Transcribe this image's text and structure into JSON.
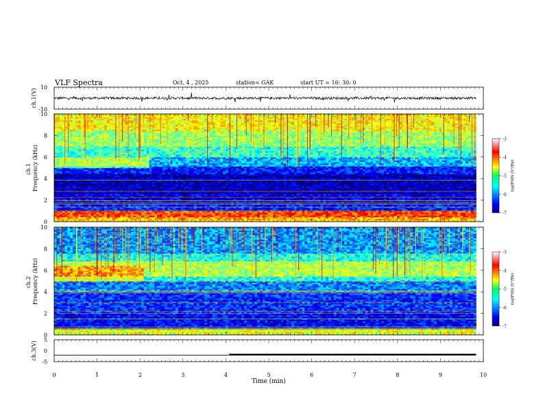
{
  "header": {
    "title": "VLF  Spectra",
    "date": "Oct. 4  , 2025",
    "station": "station= GAK",
    "start": "start  UT  =   16: 30: 0"
  },
  "chart_data": [
    {
      "type": "line",
      "name": "ch1-waveform",
      "ylabel": "ch.1(V)",
      "ylim": [
        -10,
        10
      ],
      "yticks": [
        "10",
        "-10"
      ],
      "xlim": [
        0,
        10
      ],
      "baseline": 0,
      "color": "#000000"
    },
    {
      "type": "heatmap",
      "name": "ch1-spectrogram",
      "ylabel": "ch.1\nFrequency  (kHz)",
      "ylabel_lines": [
        "ch.1",
        "Frequency  (kHz)"
      ],
      "ylim": [
        0,
        10
      ],
      "yticks": [
        "0",
        "2",
        "4",
        "6",
        "8",
        "10"
      ],
      "xlim": [
        0,
        10
      ],
      "data_xmax": 9.83,
      "bands": [
        {
          "f0": 0.0,
          "f1": 0.5,
          "level": -4.2
        },
        {
          "f0": 0.5,
          "f1": 1.0,
          "level": -3.8
        },
        {
          "f0": 1.0,
          "f1": 1.6,
          "level": -6.4
        },
        {
          "f0": 1.6,
          "f1": 2.6,
          "level": -6.6
        },
        {
          "f0": 2.6,
          "f1": 4.5,
          "level": -6.8
        },
        {
          "f0": 4.5,
          "f1": 5.2,
          "level": -6.4
        },
        {
          "f0": 5.2,
          "f1": 6.0,
          "level": -5.8
        },
        {
          "f0": 6.0,
          "f1": 7.0,
          "level": -5.3
        },
        {
          "f0": 7.0,
          "f1": 8.5,
          "level": -4.9
        },
        {
          "f0": 8.5,
          "f1": 10.0,
          "level": -4.5
        }
      ],
      "colorbar": {
        "label": "log(PSD) (V²/Hz)",
        "ticks": [
          "-3",
          "-4",
          "-5",
          "-6",
          "-7"
        ],
        "range": [
          -7,
          -3
        ]
      }
    },
    {
      "type": "heatmap",
      "name": "ch2-spectrogram",
      "ylabel": "ch.2\nFrequency  (kHz)",
      "ylabel_lines": [
        "ch.2",
        "Frequency  (kHz)"
      ],
      "ylim": [
        0,
        10
      ],
      "yticks": [
        "0",
        "2",
        "4",
        "6",
        "8",
        "10"
      ],
      "xlim": [
        0,
        10
      ],
      "data_xmax": 9.83,
      "bands": [
        {
          "f0": 0.0,
          "f1": 0.6,
          "level": -4.6
        },
        {
          "f0": 0.6,
          "f1": 2.0,
          "level": -6.5
        },
        {
          "f0": 2.0,
          "f1": 4.0,
          "level": -6.3
        },
        {
          "f0": 4.0,
          "f1": 5.0,
          "level": -6.0
        },
        {
          "f0": 5.0,
          "f1": 5.5,
          "level": -5.4
        },
        {
          "f0": 5.5,
          "f1": 6.8,
          "level": -4.8
        },
        {
          "f0": 6.8,
          "f1": 7.6,
          "level": -5.4
        },
        {
          "f0": 7.6,
          "f1": 10.0,
          "level": -5.9
        }
      ],
      "colorbar": {
        "label": "log(PSD) (V²/Hz)",
        "ticks": [
          "-3",
          "-4",
          "-5",
          "-6",
          "-7"
        ],
        "range": [
          -7,
          -3
        ]
      }
    },
    {
      "type": "line",
      "name": "ch3-trace",
      "ylabel": "ch.3(V)",
      "ylim": [
        -5,
        5
      ],
      "yticks": [
        "5",
        "0",
        "-5"
      ],
      "xlim": [
        0,
        10
      ],
      "segments": [
        {
          "x0": 0.0,
          "x1": 4.08,
          "y": -2.0
        },
        {
          "x0": 4.08,
          "x1": 9.83,
          "y": -1.8,
          "bold": true
        }
      ]
    }
  ],
  "xaxis": {
    "label": "Time  (min)",
    "ticks": [
      "0",
      "1",
      "2",
      "3",
      "4",
      "5",
      "6",
      "7",
      "8",
      "9",
      "10"
    ]
  }
}
